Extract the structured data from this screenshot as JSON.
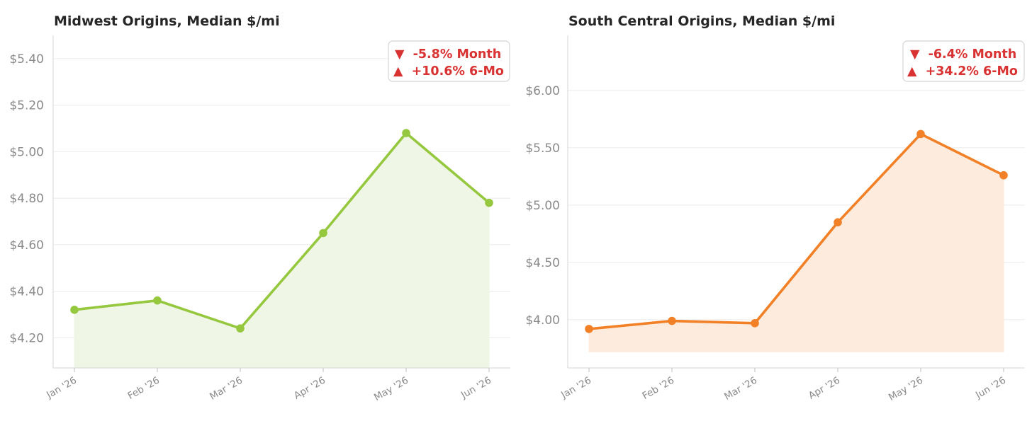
{
  "chart_data": [
    {
      "type": "line",
      "title": "Midwest Origins, Median $/mi",
      "categories": [
        "Jan '26",
        "Feb '26",
        "Mar '26",
        "Apr '26",
        "May '26",
        "Jun '26"
      ],
      "series": [
        {
          "values": [
            4.32,
            4.36,
            4.24,
            4.65,
            5.08,
            4.78
          ]
        }
      ],
      "ylim": [
        4.07,
        5.5
      ],
      "yticks": [
        4.2,
        4.4,
        4.6,
        4.8,
        5.0,
        5.4
      ],
      "ytick_labels": [
        "$4.20",
        "$4.40",
        "$4.60",
        "$4.80",
        "$5.00",
        "$5.40"
      ],
      "extra_gridlines": [
        5.2
      ],
      "extra_gridline_labels": [
        "$5.20"
      ],
      "area_fill": true,
      "fill_base": 4.07,
      "grid": true,
      "color": "#96c83f",
      "fill_color": "#f0f6e5",
      "badge": {
        "placement": "top-right",
        "lines": [
          {
            "arrow": "▼",
            "text": "-5.8% Month"
          },
          {
            "arrow": "▲",
            "text": "+10.6% 6-Mo"
          }
        ],
        "color": "#d93232"
      }
    },
    {
      "type": "line",
      "title": "South Central Origins, Median $/mi",
      "categories": [
        "Jan '26",
        "Feb '26",
        "Mar '26",
        "Apr '26",
        "May '26",
        "Jun '26"
      ],
      "series": [
        {
          "values": [
            3.92,
            3.99,
            3.97,
            4.85,
            5.62,
            5.26
          ]
        }
      ],
      "ylim": [
        3.58,
        6.48
      ],
      "yticks": [
        4.0,
        4.5,
        5.0,
        5.5,
        6.0
      ],
      "ytick_labels": [
        "$4.00",
        "$4.50",
        "$5.00",
        "$5.50",
        "$6.00"
      ],
      "area_fill": true,
      "fill_base": 3.72,
      "grid": true,
      "color": "#f28026",
      "fill_color": "#fdebdd",
      "badge": {
        "placement": "top-right",
        "lines": [
          {
            "arrow": "▼",
            "text": "-6.4% Month"
          },
          {
            "arrow": "▲",
            "text": "+34.2% 6-Mo"
          }
        ],
        "color": "#d93232"
      }
    }
  ]
}
